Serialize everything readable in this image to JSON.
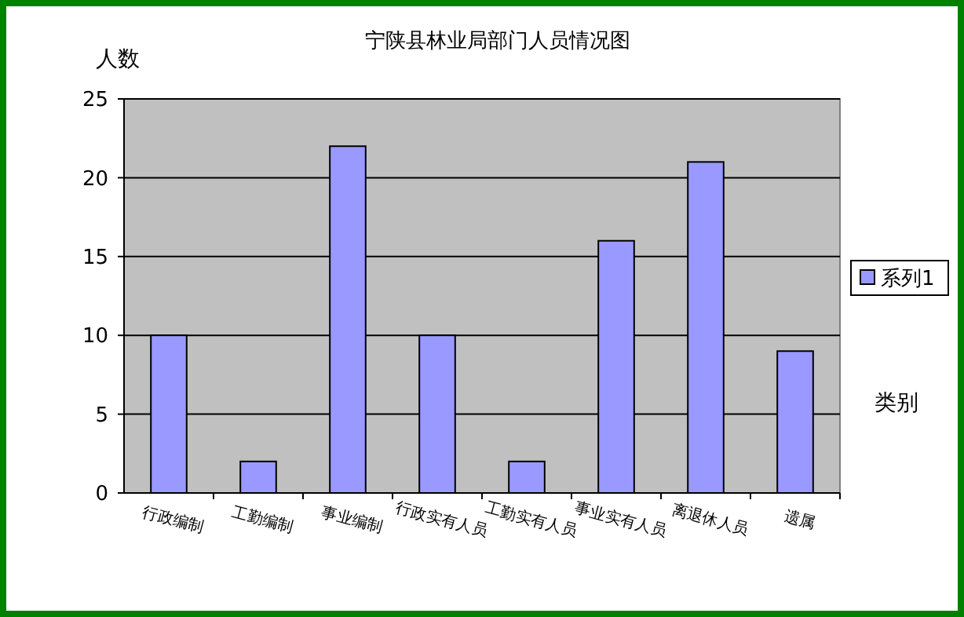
{
  "chart_data": {
    "type": "bar",
    "title": "宁陕县林业局部门人员情况图",
    "ylabel": "人数",
    "xlabel": "类别",
    "categories": [
      "行政编制",
      "工勤编制",
      "事业编制",
      "行政实有人员",
      "工勤实有人员",
      "事业实有人员",
      "离退休人员",
      "遗属"
    ],
    "series": [
      {
        "name": "系列1",
        "color": "#9999ff",
        "values": [
          10,
          2,
          22,
          10,
          2,
          16,
          21,
          9
        ]
      }
    ],
    "ylim": [
      0,
      25
    ],
    "yticks": [
      0,
      5,
      10,
      15,
      20,
      25
    ],
    "grid": "y",
    "legend": "right"
  }
}
